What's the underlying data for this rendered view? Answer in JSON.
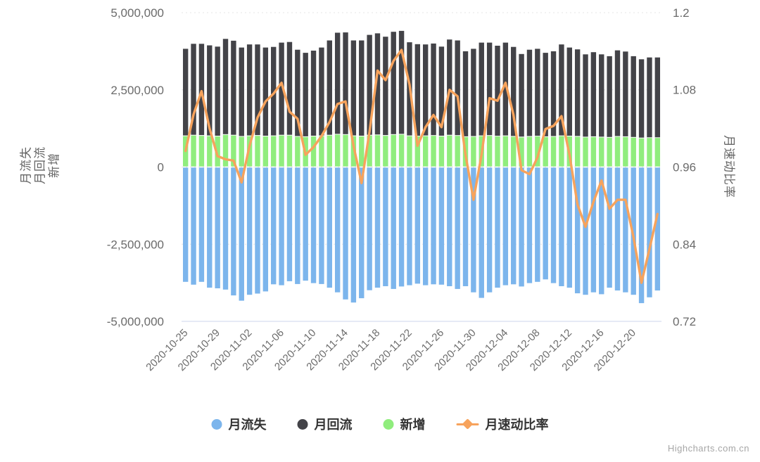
{
  "credit": {
    "text": "Highcharts.com.cn"
  },
  "left_axis": {
    "title_lines": [
      "月流失",
      "月回流",
      "新增"
    ],
    "ticks": [
      {
        "label": "5,000,000",
        "value": 5000000
      },
      {
        "label": "2,500,000",
        "value": 2500000
      },
      {
        "label": "0",
        "value": 0
      },
      {
        "label": "-2,500,000",
        "value": -2500000
      },
      {
        "label": "-5,000,000",
        "value": -5000000
      }
    ]
  },
  "right_axis": {
    "title": "月速动比率",
    "ticks": [
      {
        "label": "1.2",
        "value": 1.2
      },
      {
        "label": "1.08",
        "value": 1.08
      },
      {
        "label": "0.96",
        "value": 0.96
      },
      {
        "label": "0.84",
        "value": 0.84
      },
      {
        "label": "0.72",
        "value": 0.72
      }
    ]
  },
  "legend": {
    "items": [
      {
        "label": "月流失",
        "marker": "circle"
      },
      {
        "label": "月回流",
        "marker": "circle"
      },
      {
        "label": "新增",
        "marker": "circle"
      },
      {
        "label": "月速动比率",
        "marker": "line-diamond"
      }
    ]
  },
  "chart_data": {
    "type": "mixed-stacked-column-and-line",
    "x": [
      "2020-10-25",
      "2020-10-26",
      "2020-10-27",
      "2020-10-28",
      "2020-10-29",
      "2020-10-30",
      "2020-10-31",
      "2020-11-01",
      "2020-11-02",
      "2020-11-03",
      "2020-11-04",
      "2020-11-05",
      "2020-11-06",
      "2020-11-07",
      "2020-11-08",
      "2020-11-09",
      "2020-11-10",
      "2020-11-11",
      "2020-11-12",
      "2020-11-13",
      "2020-11-14",
      "2020-11-15",
      "2020-11-16",
      "2020-11-17",
      "2020-11-18",
      "2020-11-19",
      "2020-11-20",
      "2020-11-21",
      "2020-11-22",
      "2020-11-23",
      "2020-11-24",
      "2020-11-25",
      "2020-11-26",
      "2020-11-27",
      "2020-11-28",
      "2020-11-29",
      "2020-11-30",
      "2020-12-01",
      "2020-12-02",
      "2020-12-03",
      "2020-12-04",
      "2020-12-05",
      "2020-12-06",
      "2020-12-07",
      "2020-12-08",
      "2020-12-09",
      "2020-12-10",
      "2020-12-11",
      "2020-12-12",
      "2020-12-13",
      "2020-12-14",
      "2020-12-15",
      "2020-12-16",
      "2020-12-17",
      "2020-12-18",
      "2020-12-19",
      "2020-12-20",
      "2020-12-21",
      "2020-12-22",
      "2020-12-23"
    ],
    "x_tick_indices": [
      0,
      4,
      8,
      12,
      16,
      20,
      24,
      28,
      32,
      36,
      40,
      44,
      48,
      52,
      56
    ],
    "left_ylim": [
      -5000000,
      5000000
    ],
    "right_ylim": [
      0.72,
      1.2
    ],
    "grid": "dashed-horizontal",
    "legend_position": "bottom-center",
    "series": [
      {
        "name": "月流失",
        "type": "column",
        "axis": "left",
        "color": "#7cb5ec",
        "values": [
          -3720000,
          -3810000,
          -3720000,
          -3910000,
          -3930000,
          -3970000,
          -4160000,
          -4330000,
          -4140000,
          -4100000,
          -4030000,
          -3800000,
          -3830000,
          -3700000,
          -3790000,
          -3680000,
          -3760000,
          -3790000,
          -3910000,
          -4060000,
          -4290000,
          -4390000,
          -4250000,
          -3990000,
          -3910000,
          -3860000,
          -3950000,
          -3870000,
          -3830000,
          -3780000,
          -3830000,
          -3800000,
          -3810000,
          -3860000,
          -3950000,
          -3860000,
          -4060000,
          -4240000,
          -4060000,
          -3910000,
          -3830000,
          -3800000,
          -3870000,
          -3760000,
          -3720000,
          -3640000,
          -3760000,
          -3860000,
          -3910000,
          -4090000,
          -4140000,
          -4060000,
          -4120000,
          -3910000,
          -4000000,
          -4060000,
          -4140000,
          -4410000,
          -4220000,
          -4000000
        ]
      },
      {
        "name": "月回流",
        "type": "column",
        "axis": "left",
        "color": "#434348",
        "stacked_on": "新增",
        "values": [
          2830000,
          2970000,
          2980000,
          2940000,
          2910000,
          3110000,
          3070000,
          2890000,
          2970000,
          2960000,
          2880000,
          2890000,
          3010000,
          3030000,
          2820000,
          2730000,
          2780000,
          2870000,
          3080000,
          3300000,
          3320000,
          3100000,
          3110000,
          3260000,
          3300000,
          3210000,
          3340000,
          3360000,
          3040000,
          2990000,
          2970000,
          2990000,
          2910000,
          3110000,
          3090000,
          2780000,
          2850000,
          3030000,
          3020000,
          2940000,
          3030000,
          2910000,
          2700000,
          2820000,
          2840000,
          2730000,
          2770000,
          2970000,
          2880000,
          2830000,
          2690000,
          2750000,
          2690000,
          2640000,
          2800000,
          2770000,
          2640000,
          2560000,
          2610000,
          2610000
        ]
      },
      {
        "name": "新增",
        "type": "column",
        "axis": "left",
        "color": "#90ed7d",
        "values": [
          1000000,
          1020000,
          1010000,
          1000000,
          990000,
          1040000,
          1020000,
          980000,
          1000000,
          1010000,
          990000,
          1000000,
          1020000,
          1020000,
          980000,
          970000,
          990000,
          1000000,
          1020000,
          1050000,
          1040000,
          1000000,
          990000,
          1020000,
          1030000,
          1010000,
          1040000,
          1050000,
          1000000,
          990000,
          1000000,
          1010000,
          990000,
          1020000,
          1010000,
          970000,
          980000,
          1000000,
          1010000,
          990000,
          1000000,
          980000,
          960000,
          980000,
          990000,
          970000,
          980000,
          1000000,
          990000,
          980000,
          960000,
          970000,
          960000,
          950000,
          980000,
          970000,
          950000,
          930000,
          940000,
          940000
        ]
      },
      {
        "name": "月速动比率",
        "type": "line",
        "axis": "right",
        "color": "#f7a35c",
        "values": [
          0.985,
          1.042,
          1.078,
          1.02,
          0.977,
          0.972,
          0.97,
          0.936,
          0.993,
          1.037,
          1.062,
          1.074,
          1.091,
          1.046,
          1.035,
          0.979,
          0.991,
          1.008,
          1.03,
          1.058,
          1.062,
          0.993,
          0.935,
          1.015,
          1.11,
          1.095,
          1.125,
          1.142,
          1.088,
          0.993,
          1.022,
          1.041,
          1.022,
          1.08,
          1.07,
          0.979,
          0.909,
          0.979,
          1.067,
          1.063,
          1.091,
          1.041,
          0.955,
          0.949,
          0.975,
          1.019,
          1.024,
          1.039,
          0.979,
          0.902,
          0.867,
          0.906,
          0.939,
          0.895,
          0.909,
          0.909,
          0.851,
          0.78,
          0.833,
          0.887
        ]
      }
    ]
  },
  "colors": {
    "axis_label": "#6b6b6b",
    "axis_line": "#ccd6eb",
    "gridline": "#e4e4e4",
    "legend_text": "#333333",
    "credit_text": "#a6a6a6"
  }
}
